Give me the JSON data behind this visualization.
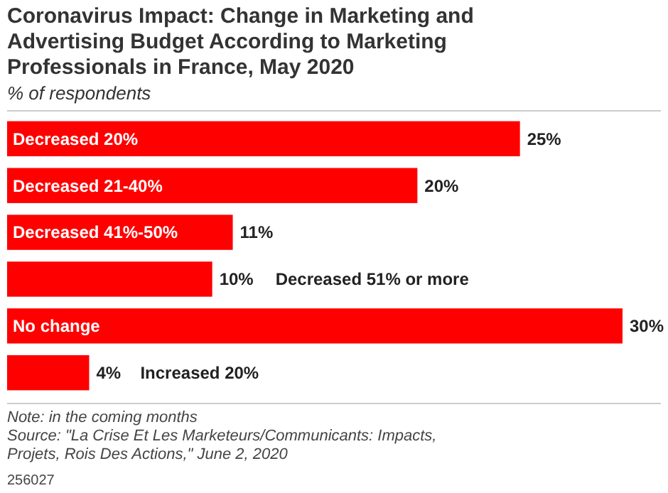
{
  "chart_data": {
    "type": "bar",
    "orientation": "horizontal",
    "title": "Coronavirus Impact: Change in Marketing and Advertising Budget According to Marketing Professionals in France, May 2020",
    "subtitle": "% of respondents",
    "categories": [
      "Decreased 20%",
      "Decreased 21-40%",
      "Decreased 41%-50%",
      "Decreased 51% or more",
      "No change",
      "Increased 20%"
    ],
    "values": [
      25,
      20,
      11,
      10,
      30,
      4
    ],
    "color": "#ff0000",
    "value_labels": [
      "25%",
      "20%",
      "11%",
      "10%",
      "30%",
      "4%"
    ],
    "annotations": [
      "Note: in the coming months",
      "Source: \"La Crise Et Les Marketeurs/Communicants: Impacts, Projets, Rois Des Actions,\" June 2, 2020",
      "256027"
    ]
  }
}
